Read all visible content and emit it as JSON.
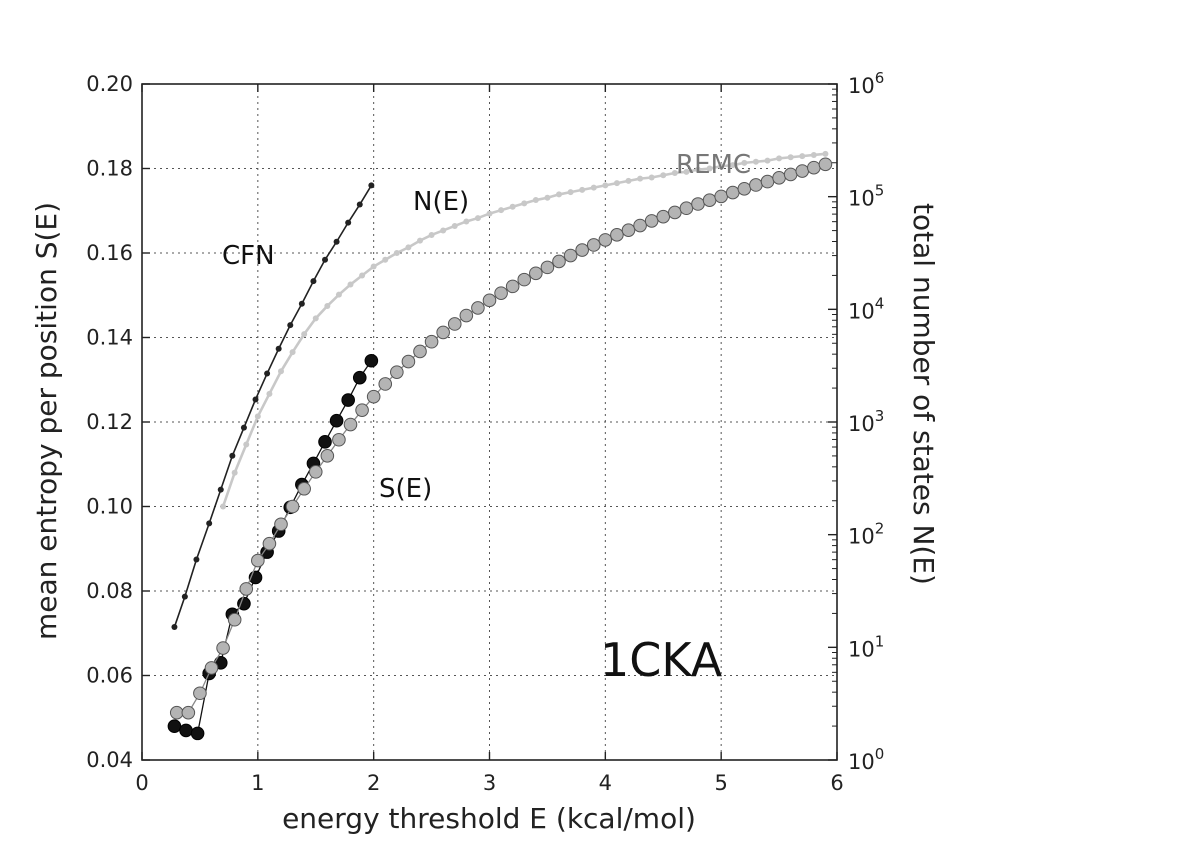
{
  "chart_data": {
    "type": "line",
    "xlabel": "energy threshold E (kcal/mol)",
    "ylabel": "mean entropy per position S(E)",
    "y2label": "total number of states N(E)",
    "xlim": [
      0,
      6
    ],
    "ylim": [
      0.04,
      0.2
    ],
    "y2lim_log10": [
      0,
      6
    ],
    "y2_scale": "log",
    "grid": true,
    "x_ticks": [
      "0",
      "1",
      "2",
      "3",
      "4",
      "5",
      "6"
    ],
    "y_ticks": [
      "0.04",
      "0.06",
      "0.08",
      "0.10",
      "0.12",
      "0.14",
      "0.16",
      "0.18",
      "0.20"
    ],
    "y2_ticks": [
      {
        "base": "10",
        "exp": "0"
      },
      {
        "base": "10",
        "exp": "1"
      },
      {
        "base": "10",
        "exp": "2"
      },
      {
        "base": "10",
        "exp": "3"
      },
      {
        "base": "10",
        "exp": "4"
      },
      {
        "base": "10",
        "exp": "5"
      },
      {
        "base": "10",
        "exp": "6"
      }
    ],
    "annotations": {
      "cfn": "CFN",
      "ne": "N(E)",
      "se": "S(E)",
      "remc": "REMC",
      "protein": "1CKA"
    },
    "series": [
      {
        "id": "cfn-ne",
        "axis": "y2",
        "color": "#222222",
        "marker": "small-dot",
        "x": [
          0.28,
          0.37,
          0.47,
          0.58,
          0.68,
          0.78,
          0.88,
          0.98,
          1.08,
          1.18,
          1.28,
          1.38,
          1.48,
          1.58,
          1.68,
          1.78,
          1.88,
          1.98
        ],
        "y_log10": [
          1.18,
          1.45,
          1.78,
          2.1,
          2.4,
          2.7,
          2.95,
          3.2,
          3.43,
          3.65,
          3.86,
          4.05,
          4.25,
          4.44,
          4.6,
          4.77,
          4.93,
          5.1
        ]
      },
      {
        "id": "remc-ne",
        "axis": "y2",
        "color": "#c8c8c8",
        "marker": "small-dot",
        "x": [
          0.7,
          0.8,
          0.9,
          1.0,
          1.1,
          1.2,
          1.3,
          1.4,
          1.5,
          1.6,
          1.7,
          1.8,
          1.9,
          2.0,
          2.1,
          2.2,
          2.3,
          2.4,
          2.5,
          2.6,
          2.7,
          2.8,
          2.9,
          3.0,
          3.1,
          3.2,
          3.3,
          3.4,
          3.5,
          3.6,
          3.7,
          3.8,
          3.9,
          4.0,
          4.1,
          4.2,
          4.3,
          4.4,
          4.5,
          4.6,
          4.7,
          4.8,
          4.9,
          5.0,
          5.1,
          5.2,
          5.3,
          5.4,
          5.5,
          5.6,
          5.7,
          5.8,
          5.9
        ],
        "y_log10": [
          2.25,
          2.55,
          2.8,
          3.05,
          3.25,
          3.45,
          3.62,
          3.78,
          3.92,
          4.03,
          4.13,
          4.22,
          4.3,
          4.38,
          4.44,
          4.5,
          4.55,
          4.61,
          4.66,
          4.7,
          4.74,
          4.78,
          4.81,
          4.85,
          4.88,
          4.91,
          4.94,
          4.97,
          4.99,
          5.02,
          5.04,
          5.06,
          5.08,
          5.1,
          5.12,
          5.14,
          5.16,
          5.17,
          5.19,
          5.21,
          5.22,
          5.24,
          5.25,
          5.27,
          5.28,
          5.3,
          5.31,
          5.32,
          5.34,
          5.35,
          5.36,
          5.37,
          5.38
        ]
      },
      {
        "id": "cfn-se",
        "axis": "y",
        "color": "#111111",
        "marker": "large-circle",
        "x": [
          0.28,
          0.38,
          0.48,
          0.58,
          0.68,
          0.78,
          0.88,
          0.98,
          1.08,
          1.18,
          1.28,
          1.38,
          1.48,
          1.58,
          1.68,
          1.78,
          1.88,
          1.98
        ],
        "y": [
          0.048,
          0.047,
          0.0463,
          0.0605,
          0.063,
          0.0745,
          0.077,
          0.0832,
          0.0892,
          0.0942,
          0.0998,
          0.1052,
          0.1102,
          0.1153,
          0.1203,
          0.1252,
          0.1305,
          0.1345
        ]
      },
      {
        "id": "remc-se",
        "axis": "y",
        "color": "#b4b4b4",
        "marker": "large-circle",
        "x": [
          0.3,
          0.4,
          0.5,
          0.6,
          0.7,
          0.8,
          0.9,
          1.0,
          1.1,
          1.2,
          1.3,
          1.4,
          1.5,
          1.6,
          1.7,
          1.8,
          1.9,
          2.0,
          2.1,
          2.2,
          2.3,
          2.4,
          2.5,
          2.6,
          2.7,
          2.8,
          2.9,
          3.0,
          3.1,
          3.2,
          3.3,
          3.4,
          3.5,
          3.6,
          3.7,
          3.8,
          3.9,
          4.0,
          4.1,
          4.2,
          4.3,
          4.4,
          4.5,
          4.6,
          4.7,
          4.8,
          4.9,
          5.0,
          5.1,
          5.2,
          5.3,
          5.4,
          5.5,
          5.6,
          5.7,
          5.8,
          5.9
        ],
        "y": [
          0.0512,
          0.0512,
          0.0558,
          0.0618,
          0.0665,
          0.0732,
          0.0805,
          0.0872,
          0.0912,
          0.0958,
          0.1,
          0.1042,
          0.1082,
          0.112,
          0.1158,
          0.1194,
          0.1228,
          0.126,
          0.129,
          0.1318,
          0.1343,
          0.1367,
          0.139,
          0.1412,
          0.1432,
          0.1452,
          0.147,
          0.1488,
          0.1505,
          0.1521,
          0.1537,
          0.1552,
          0.1566,
          0.158,
          0.1594,
          0.1607,
          0.1619,
          0.1631,
          0.1643,
          0.1654,
          0.1665,
          0.1676,
          0.1686,
          0.1696,
          0.1706,
          0.1716,
          0.1725,
          0.1734,
          0.1743,
          0.1752,
          0.1761,
          0.1769,
          0.1778,
          0.1786,
          0.1794,
          0.1802,
          0.181
        ]
      }
    ]
  }
}
